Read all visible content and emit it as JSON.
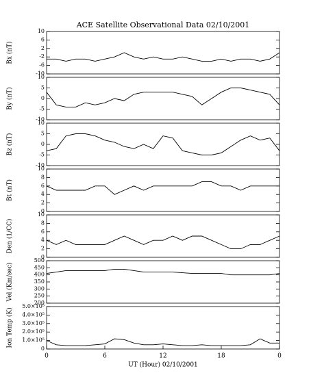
{
  "chart_data": [
    {
      "type": "line",
      "title": "ACE Satellite Observational Data   02/10/2001",
      "ylabel": "Bx (nT)",
      "color": "#000000",
      "x": [
        0,
        1,
        2,
        3,
        4,
        5,
        6,
        7,
        8,
        9,
        10,
        11,
        12,
        13,
        14,
        15,
        16,
        17,
        18,
        19,
        20,
        21,
        22,
        23,
        24
      ],
      "values": [
        -3,
        -3,
        -4,
        -3,
        -3,
        -4,
        -3,
        -2,
        0,
        -2,
        -3,
        -2,
        -3,
        -3,
        -2,
        -3,
        -4,
        -4,
        -3,
        -4,
        -3,
        -3,
        -4,
        -3,
        0
      ],
      "xlim": [
        0,
        24
      ],
      "ylim": [
        -10,
        10
      ],
      "yticks": [
        -10,
        -6,
        -2,
        2,
        6,
        10
      ]
    },
    {
      "type": "line",
      "ylabel": "By (nT)",
      "color": "#000000",
      "x": [
        0,
        1,
        2,
        3,
        4,
        5,
        6,
        7,
        8,
        9,
        10,
        11,
        12,
        13,
        14,
        15,
        16,
        17,
        18,
        19,
        20,
        21,
        22,
        23,
        24
      ],
      "values": [
        3,
        -3,
        -4,
        -4,
        -2,
        -3,
        -2,
        0,
        -1,
        2,
        3,
        3,
        3,
        3,
        2,
        1,
        -3,
        0,
        3,
        5,
        5,
        4,
        3,
        2,
        -3
      ],
      "xlim": [
        0,
        24
      ],
      "ylim": [
        -10,
        10
      ],
      "yticks": [
        -10,
        -5,
        0,
        5,
        10
      ]
    },
    {
      "type": "line",
      "ylabel": "Bz (nT)",
      "color": "#000000",
      "x": [
        0,
        1,
        2,
        3,
        4,
        5,
        6,
        7,
        8,
        9,
        10,
        11,
        12,
        13,
        14,
        15,
        16,
        17,
        18,
        19,
        20,
        21,
        22,
        23,
        24
      ],
      "values": [
        -3,
        -2,
        4,
        5,
        5,
        4,
        2,
        1,
        -1,
        -2,
        0,
        -2,
        4,
        3,
        -3,
        -4,
        -5,
        -5,
        -4,
        -1,
        2,
        4,
        2,
        3,
        -3
      ],
      "xlim": [
        0,
        24
      ],
      "ylim": [
        -10,
        10
      ],
      "yticks": [
        -10,
        -5,
        0,
        5,
        10
      ]
    },
    {
      "type": "line",
      "ylabel": "Bt (nT)",
      "color": "#000000",
      "x": [
        0,
        1,
        2,
        3,
        4,
        5,
        6,
        7,
        8,
        9,
        10,
        11,
        12,
        13,
        14,
        15,
        16,
        17,
        18,
        19,
        20,
        21,
        22,
        23,
        24
      ],
      "values": [
        6,
        5,
        5,
        5,
        5,
        6,
        6,
        4,
        5,
        6,
        5,
        6,
        6,
        6,
        6,
        6,
        7,
        7,
        6,
        6,
        5,
        6,
        6,
        6,
        6
      ],
      "xlim": [
        0,
        24
      ],
      "ylim": [
        0,
        10
      ],
      "yticks": [
        0,
        2,
        4,
        6,
        8,
        10
      ]
    },
    {
      "type": "line",
      "ylabel": "Den (1/CC)",
      "color": "#000000",
      "x": [
        0,
        1,
        2,
        3,
        4,
        5,
        6,
        7,
        8,
        9,
        10,
        11,
        12,
        13,
        14,
        15,
        16,
        17,
        18,
        19,
        20,
        21,
        22,
        23,
        24
      ],
      "values": [
        4,
        3,
        4,
        3,
        3,
        3,
        3,
        4,
        5,
        4,
        3,
        4,
        4,
        5,
        4,
        5,
        5,
        4,
        3,
        2,
        2,
        3,
        3,
        4,
        5
      ],
      "xlim": [
        0,
        24
      ],
      "ylim": [
        0,
        10
      ],
      "yticks": [
        0,
        2,
        4,
        6,
        8,
        10
      ]
    },
    {
      "type": "line",
      "ylabel": "Vel (Km/sec)",
      "color": "#000000",
      "x": [
        0,
        1,
        2,
        3,
        4,
        5,
        6,
        7,
        8,
        9,
        10,
        11,
        12,
        13,
        14,
        15,
        16,
        17,
        18,
        19,
        20,
        21,
        22,
        23,
        24
      ],
      "values": [
        410,
        420,
        430,
        430,
        430,
        430,
        430,
        440,
        440,
        430,
        420,
        420,
        420,
        420,
        415,
        410,
        410,
        410,
        410,
        400,
        400,
        400,
        400,
        400,
        410
      ],
      "xlim": [
        0,
        24
      ],
      "ylim": [
        200,
        500
      ],
      "yticks": [
        200,
        250,
        300,
        350,
        400,
        450,
        500
      ]
    },
    {
      "type": "line",
      "ylabel": "Ion Temp (K)",
      "xlabel": "UT (Hour)   02/10/2001",
      "color": "#000000",
      "x": [
        0,
        1,
        2,
        3,
        4,
        5,
        6,
        7,
        8,
        9,
        10,
        11,
        12,
        13,
        14,
        15,
        16,
        17,
        18,
        19,
        20,
        21,
        22,
        23,
        24
      ],
      "values": [
        100000,
        50000,
        40000,
        40000,
        40000,
        50000,
        60000,
        120000,
        110000,
        70000,
        50000,
        50000,
        60000,
        50000,
        40000,
        40000,
        50000,
        40000,
        40000,
        40000,
        40000,
        50000,
        120000,
        70000,
        70000
      ],
      "xlim": [
        0,
        24
      ],
      "ylim": [
        0,
        500000
      ],
      "yticks": [
        0,
        {
          "value": 100000,
          "label": "1.0×10⁵"
        },
        {
          "value": 200000,
          "label": "2.0×10⁵"
        },
        {
          "value": 300000,
          "label": "3.0×10⁵"
        },
        {
          "value": 400000,
          "label": "4.0×10⁵"
        },
        {
          "value": 500000,
          "label": "5.0×10⁵"
        }
      ],
      "xticks": [
        0,
        6,
        12,
        18,
        {
          "value": 24,
          "label": "0"
        }
      ]
    }
  ]
}
